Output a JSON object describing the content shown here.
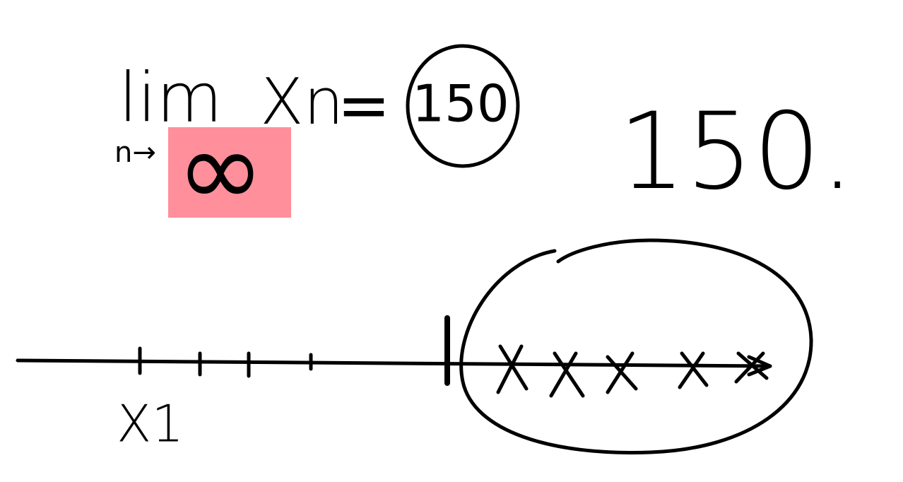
{
  "formula": {
    "operator": "lim",
    "subscript": "n→",
    "subscript_target": "∞",
    "variable": "Xn",
    "equals": "=",
    "result": "150"
  },
  "side_note": "150.",
  "axis_label": "X1"
}
